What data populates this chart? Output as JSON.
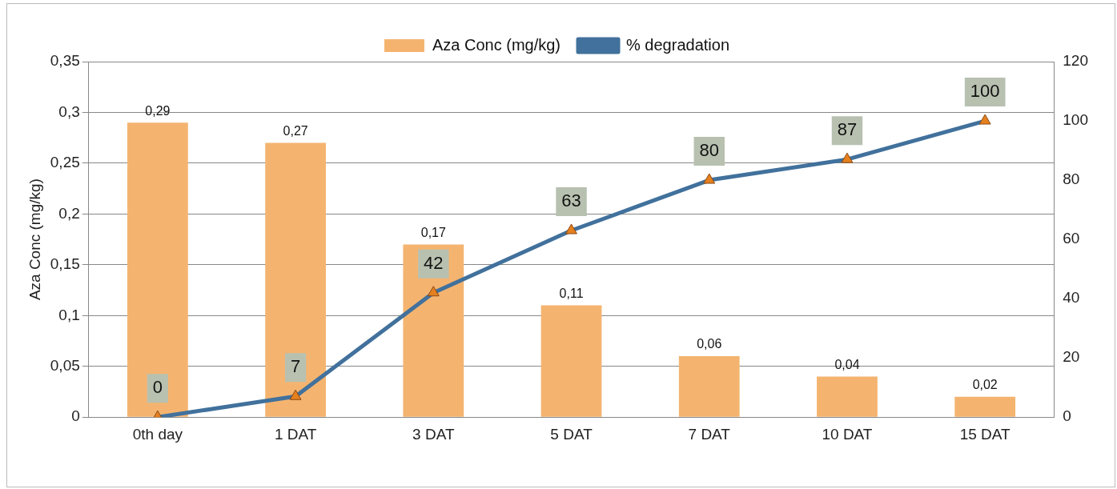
{
  "chart_data": {
    "type": "bar",
    "ylabel": "Aza Conc (mg/kg)",
    "categories": [
      "0th day",
      "1 DAT",
      "3 DAT",
      "5 DAT",
      "7 DAT",
      "10 DAT",
      "15 DAT"
    ],
    "series": [
      {
        "name": "Aza Conc (mg/kg)",
        "color": "#f4b470",
        "values": [
          0.29,
          0.27,
          0.17,
          0.11,
          0.06,
          0.04,
          0.02
        ],
        "value_labels": [
          "0,29",
          "0,27",
          "0,17",
          "0,11",
          "0,06",
          "0,04",
          "0,02"
        ]
      },
      {
        "name": "% degradation",
        "type": "line",
        "axis": "y2",
        "color": "#41719c",
        "values": [
          0,
          7,
          42,
          63,
          80,
          87,
          100
        ],
        "value_labels": [
          "0",
          "7",
          "42",
          "63",
          "80",
          "87",
          "100"
        ]
      }
    ],
    "ylim": [
      0,
      0.35
    ],
    "yticks": [
      0,
      {
        "value": 0.05,
        "label": "0,05"
      },
      {
        "value": 0.1,
        "label": "0,1"
      },
      {
        "value": 0.15,
        "label": "0,15"
      },
      {
        "value": 0.2,
        "label": "0,2"
      },
      {
        "value": 0.25,
        "label": "0,25"
      },
      {
        "value": 0.3,
        "label": "0,3"
      },
      {
        "value": 0.35,
        "label": "0,35"
      }
    ],
    "y2lim": [
      0,
      120
    ],
    "y2ticks": [
      0,
      20,
      40,
      60,
      80,
      100,
      120
    ],
    "grid": "y",
    "legend": "top",
    "marker": "triangle",
    "line_style": "solid"
  }
}
